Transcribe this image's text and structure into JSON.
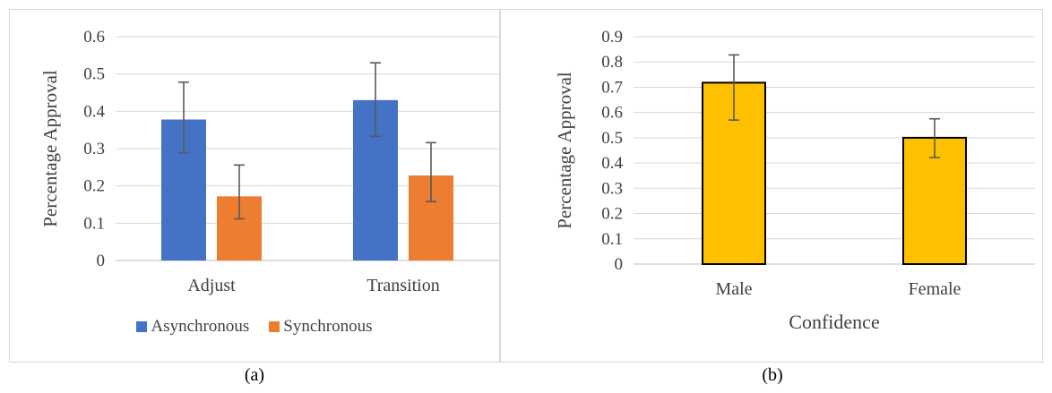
{
  "chart_data": [
    {
      "type": "bar",
      "panel_label": "(a)",
      "ylabel": "Percentage Approval",
      "xlabel": "",
      "ylim": [
        0,
        0.6
      ],
      "yticks": [
        0,
        0.1,
        0.2,
        0.3,
        0.4,
        0.5,
        0.6
      ],
      "ytick_labels": [
        "0",
        "0.1",
        "0.2",
        "0.3",
        "0.4",
        "0.5",
        "0.6"
      ],
      "categories": [
        "Adjust",
        "Transition"
      ],
      "series": [
        {
          "name": "Asynchronous",
          "color": "#4472c4",
          "values": [
            0.378,
            0.43
          ],
          "err_low": [
            0.288,
            0.333
          ],
          "err_high": [
            0.478,
            0.53
          ]
        },
        {
          "name": "Synchronous",
          "color": "#ed7d31",
          "values": [
            0.172,
            0.228
          ],
          "err_low": [
            0.112,
            0.158
          ],
          "err_high": [
            0.256,
            0.316
          ]
        }
      ],
      "grid": true,
      "legend": "bottom"
    },
    {
      "type": "bar",
      "panel_label": "(b)",
      "ylabel": "Percentage Approval",
      "xlabel": "Confidence",
      "ylim": [
        0,
        0.9
      ],
      "yticks": [
        0,
        0.1,
        0.2,
        0.3,
        0.4,
        0.5,
        0.6,
        0.7,
        0.8,
        0.9
      ],
      "ytick_labels": [
        "0",
        "0.1",
        "0.2",
        "0.3",
        "0.4",
        "0.5",
        "0.6",
        "0.7",
        "0.8",
        "0.9"
      ],
      "categories": [
        "Male",
        "Female"
      ],
      "series": [
        {
          "color": "#ffc000",
          "values": [
            0.718,
            0.5
          ],
          "err_low": [
            0.57,
            0.422
          ],
          "err_high": [
            0.828,
            0.575
          ]
        }
      ],
      "grid": true,
      "legend": "none"
    }
  ]
}
